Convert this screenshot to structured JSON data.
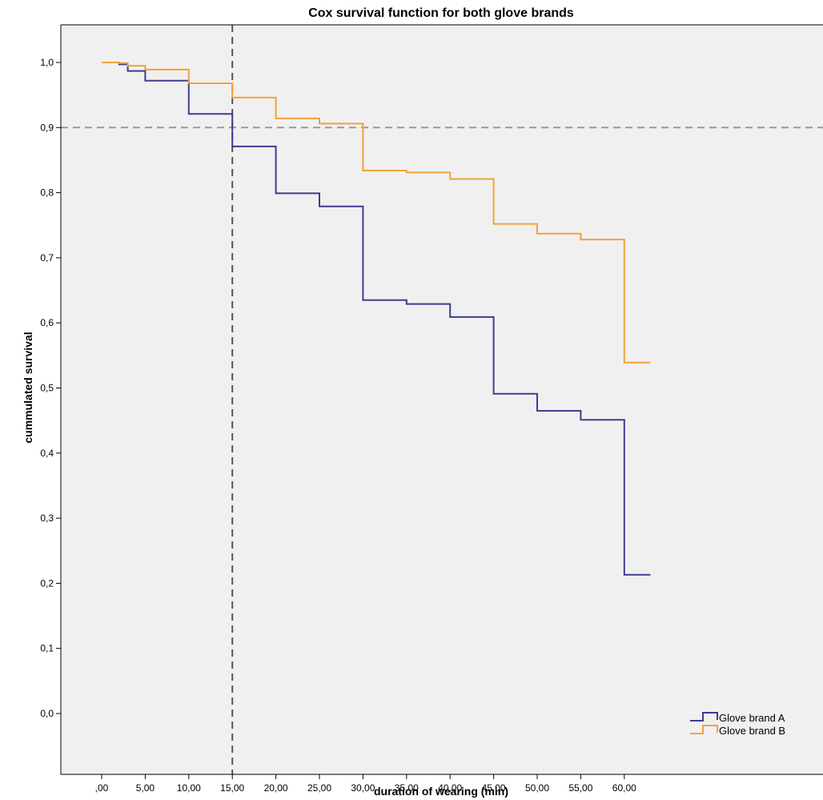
{
  "chart_data": {
    "type": "line",
    "step": true,
    "title": "Cox survival function for both glove brands",
    "xlabel": "duration of wearing (min)",
    "ylabel": "cummulated survival",
    "xlim": [
      -3,
      63
    ],
    "ylim": [
      -0.055,
      1.055
    ],
    "x_ticks": [
      0,
      5,
      10,
      15,
      20,
      25,
      30,
      35,
      40,
      45,
      50,
      55,
      60
    ],
    "x_tick_labels": [
      ",00",
      "5,00",
      "10,00",
      "15,00",
      "20,00",
      "25,00",
      "30,00",
      "35,00",
      "40,00",
      "45,00",
      "50,00",
      "55,00",
      "60,00"
    ],
    "y_ticks": [
      0.0,
      0.1,
      0.2,
      0.3,
      0.4,
      0.5,
      0.6,
      0.7,
      0.8,
      0.9,
      1.0
    ],
    "y_tick_labels": [
      "0,0",
      "0,1",
      "0,2",
      "0,3",
      "0,4",
      "0,5",
      "0,6",
      "0,7",
      "0,8",
      "0,9",
      "1,0"
    ],
    "grid": false,
    "plot_background": "#f0f0f0",
    "reference_lines": [
      {
        "orientation": "horizontal",
        "value": 0.9,
        "style": "dashed",
        "color": "#999999"
      },
      {
        "orientation": "vertical",
        "value": 15,
        "style": "dashed",
        "color": "#555555"
      }
    ],
    "legend_position": "bottom-right",
    "series": [
      {
        "name": "Glove brand A",
        "color": "#3d3d8f",
        "x": [
          0,
          2,
          3,
          5,
          10,
          15,
          20,
          25,
          30,
          35,
          40,
          45,
          50,
          55,
          60,
          63
        ],
        "y": [
          1.0,
          0.997,
          0.987,
          0.972,
          0.921,
          0.871,
          0.799,
          0.779,
          0.635,
          0.629,
          0.609,
          0.491,
          0.465,
          0.451,
          0.213,
          0.213
        ]
      },
      {
        "name": "Glove brand B",
        "color": "#f0a33a",
        "x": [
          0,
          2,
          3,
          5,
          10,
          15,
          20,
          25,
          30,
          35,
          40,
          45,
          50,
          55,
          60,
          63
        ],
        "y": [
          1.0,
          0.999,
          0.995,
          0.989,
          0.968,
          0.946,
          0.914,
          0.906,
          0.834,
          0.831,
          0.821,
          0.752,
          0.737,
          0.728,
          0.539,
          0.539
        ]
      }
    ]
  }
}
